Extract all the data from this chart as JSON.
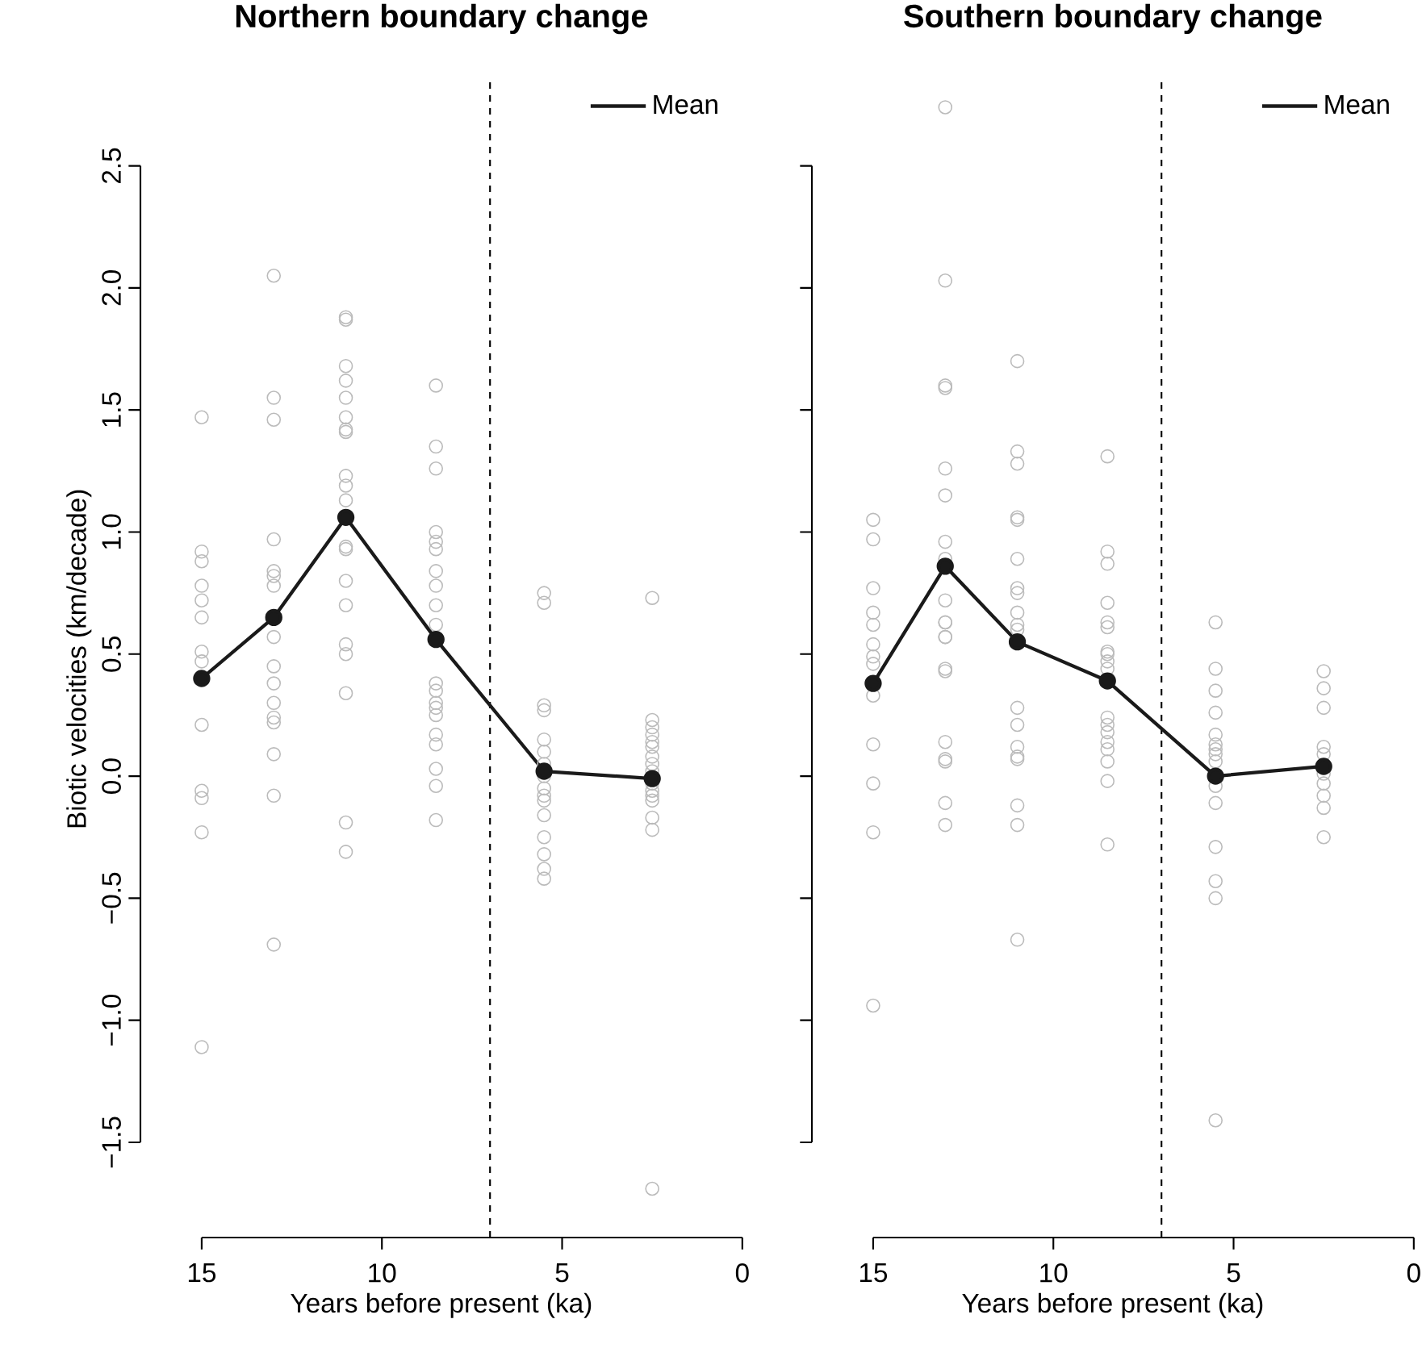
{
  "chart_data": [
    {
      "type": "line",
      "title": "Northern boundary change",
      "xlabel": "Years before present (ka)",
      "ylabel": "Biotic velocities (km/decade)",
      "xlim": [
        16.7,
        0
      ],
      "ylim": [
        -1.89,
        2.85
      ],
      "xticks": [
        15,
        10,
        5,
        0
      ],
      "yticks": [
        {
          "value": -1.5,
          "label": "−1.5"
        },
        {
          "value": -1.0,
          "label": "−1.0"
        },
        {
          "value": -0.5,
          "label": "−0.5"
        },
        {
          "value": 0,
          "label": "0.0"
        },
        0.5,
        {
          "value": 1.0,
          "label": "1.0"
        },
        1.5,
        {
          "value": 2.0,
          "label": "2.0"
        },
        2.5
      ],
      "legend": "top right",
      "grid": false,
      "ref_lines": [
        {
          "axis": "x",
          "value": 7,
          "color": "#000000",
          "line_style": "dashed"
        }
      ],
      "series": [
        {
          "type": "scatter",
          "color": "#bbbbbb",
          "marker": "circle",
          "x": [
            15,
            15,
            15,
            15,
            15,
            15,
            15,
            15,
            15,
            15,
            15,
            15,
            15,
            13,
            13,
            13,
            13,
            13,
            13,
            13,
            13,
            13,
            13,
            13,
            13,
            13,
            13,
            13,
            13,
            11,
            11,
            11,
            11,
            11,
            11,
            11,
            11,
            11,
            11,
            11,
            11,
            11,
            11,
            11,
            11,
            11,
            11,
            11,
            11,
            8.5,
            8.5,
            8.5,
            8.5,
            8.5,
            8.5,
            8.5,
            8.5,
            8.5,
            8.5,
            8.5,
            8.5,
            8.5,
            8.5,
            8.5,
            8.5,
            8.5,
            8.5,
            8.5,
            8.5,
            5.5,
            5.5,
            5.5,
            5.5,
            5.5,
            5.5,
            5.5,
            5.5,
            5.5,
            5.5,
            5.5,
            5.5,
            5.5,
            5.5,
            5.5,
            5.5,
            2.5,
            2.5,
            2.5,
            2.5,
            2.5,
            2.5,
            2.5,
            2.5,
            2.5,
            2.5,
            2.5,
            2.5,
            2.5,
            2.5,
            2.5,
            2.5
          ],
          "values": [
            1.47,
            0.92,
            0.88,
            0.78,
            0.72,
            0.65,
            0.51,
            0.47,
            0.21,
            -0.06,
            -0.09,
            -0.23,
            -1.11,
            2.05,
            1.55,
            1.46,
            0.97,
            0.84,
            0.82,
            0.78,
            0.57,
            0.45,
            0.38,
            0.3,
            0.24,
            0.22,
            0.09,
            -0.08,
            -0.69,
            1.88,
            1.87,
            1.68,
            1.62,
            1.55,
            1.47,
            1.42,
            1.41,
            1.23,
            1.19,
            1.13,
            0.94,
            0.93,
            0.8,
            0.7,
            0.54,
            0.5,
            0.34,
            -0.19,
            -0.31,
            1.6,
            1.35,
            1.26,
            1.0,
            0.96,
            0.93,
            0.84,
            0.78,
            0.7,
            0.62,
            0.38,
            0.35,
            0.3,
            0.28,
            0.25,
            0.17,
            0.13,
            0.03,
            -0.04,
            -0.18,
            0.75,
            0.71,
            0.29,
            0.27,
            0.15,
            0.1,
            0.05,
            0.0,
            -0.05,
            -0.08,
            -0.1,
            -0.16,
            -0.25,
            -0.32,
            -0.38,
            -0.42,
            0.73,
            0.23,
            0.2,
            0.17,
            0.14,
            0.12,
            0.08,
            0.05,
            0.02,
            -0.03,
            -0.06,
            -0.08,
            -0.1,
            -0.17,
            -0.22,
            -1.69
          ]
        },
        {
          "name": "Mean",
          "color": "#1a1a1a",
          "marker": "circle",
          "line_style": "solid",
          "x": [
            15,
            13,
            11,
            8.5,
            5.5,
            2.5
          ],
          "values": [
            0.4,
            0.65,
            1.06,
            0.56,
            0.02,
            -0.01
          ]
        }
      ]
    },
    {
      "type": "line",
      "title": "Southern boundary change",
      "xlabel": "Years before present (ka)",
      "xlim": [
        16.7,
        0
      ],
      "ylim": [
        -1.89,
        2.85
      ],
      "xticks": [
        15,
        10,
        5,
        0
      ],
      "yticks": [
        -1.5,
        -1.0,
        -0.5,
        0,
        0.5,
        1.0,
        1.5,
        2.0,
        2.5
      ],
      "tick_labels": "x",
      "legend": "top right",
      "grid": false,
      "ref_lines": [
        {
          "axis": "x",
          "value": 7,
          "color": "#000000",
          "line_style": "dashed"
        }
      ],
      "series": [
        {
          "type": "scatter",
          "color": "#bbbbbb",
          "marker": "circle",
          "x": [
            15,
            15,
            15,
            15,
            15,
            15,
            15,
            15,
            15,
            15,
            15,
            15,
            15,
            13,
            13,
            13,
            13,
            13,
            13,
            13,
            13,
            13,
            13,
            13,
            13,
            13,
            13,
            13,
            13,
            13,
            13,
            13,
            13,
            11,
            11,
            11,
            11,
            11,
            11,
            11,
            11,
            11,
            11,
            11,
            11,
            11,
            11,
            11,
            11,
            11,
            11,
            11,
            8.5,
            8.5,
            8.5,
            8.5,
            8.5,
            8.5,
            8.5,
            8.5,
            8.5,
            8.5,
            8.5,
            8.5,
            8.5,
            8.5,
            8.5,
            8.5,
            8.5,
            8.5,
            5.5,
            5.5,
            5.5,
            5.5,
            5.5,
            5.5,
            5.5,
            5.5,
            5.5,
            5.5,
            5.5,
            5.5,
            5.5,
            5.5,
            5.5,
            2.5,
            2.5,
            2.5,
            2.5,
            2.5,
            2.5,
            2.5,
            2.5,
            2.5,
            2.5
          ],
          "values": [
            1.05,
            0.97,
            0.77,
            0.67,
            0.62,
            0.54,
            0.49,
            0.46,
            0.33,
            0.13,
            -0.03,
            -0.23,
            -0.94,
            2.74,
            2.03,
            1.6,
            1.59,
            1.26,
            1.15,
            0.96,
            0.89,
            0.72,
            0.63,
            0.57,
            0.44,
            0.43,
            0.14,
            0.07,
            0.06,
            -0.11,
            -0.2,
            0.63,
            0.57,
            1.7,
            1.33,
            1.28,
            1.06,
            1.05,
            0.89,
            0.77,
            0.75,
            0.67,
            0.62,
            0.6,
            0.28,
            0.21,
            0.12,
            0.08,
            0.07,
            -0.12,
            -0.2,
            -0.67,
            1.31,
            0.92,
            0.87,
            0.71,
            0.63,
            0.61,
            0.51,
            0.47,
            0.5,
            0.44,
            0.24,
            0.21,
            0.18,
            0.14,
            0.11,
            0.06,
            -0.02,
            -0.28,
            0.63,
            0.44,
            0.35,
            0.26,
            0.17,
            0.13,
            0.11,
            0.09,
            0.06,
            -0.04,
            -0.11,
            -0.29,
            -0.43,
            -0.5,
            -1.41,
            0.43,
            0.36,
            0.28,
            0.12,
            0.09,
            0.01,
            -0.03,
            -0.08,
            -0.13,
            -0.25
          ]
        },
        {
          "name": "Mean",
          "color": "#1a1a1a",
          "marker": "circle",
          "line_style": "solid",
          "x": [
            15,
            13,
            11,
            8.5,
            5.5,
            2.5
          ],
          "values": [
            0.38,
            0.86,
            0.55,
            0.39,
            0.0,
            0.04
          ]
        }
      ]
    }
  ]
}
